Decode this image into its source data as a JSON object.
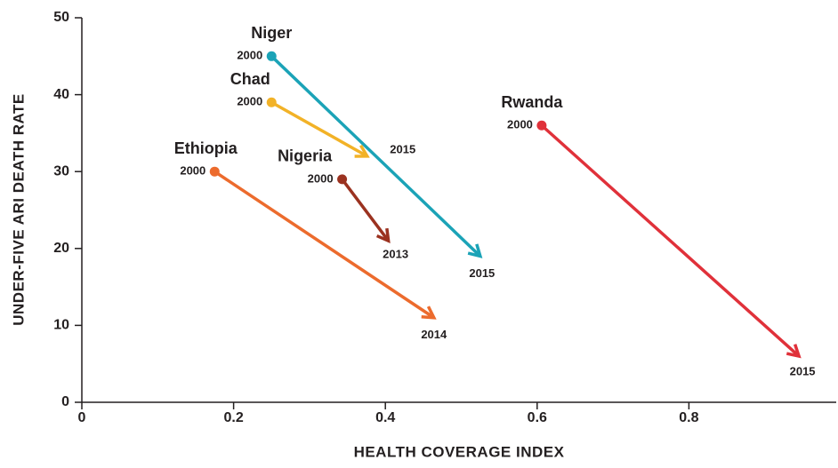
{
  "chart_data": {
    "type": "arrow",
    "x_label": "HEALTH COVERAGE INDEX",
    "y_label": "UNDER-FIVE ARI DEATH RATE",
    "xlim": [
      0,
      1
    ],
    "xticks": [
      0,
      0.2,
      0.4,
      0.6,
      0.8
    ],
    "ylim": [
      0,
      50
    ],
    "yticks": [
      0,
      10,
      20,
      30,
      40,
      50
    ],
    "series": [
      {
        "name": "Niger",
        "color": "#1ba3b7",
        "x": [
          0.25,
          0.525
        ],
        "values": [
          45,
          19
        ],
        "labels": [
          2000,
          2015
        ]
      },
      {
        "name": "Chad",
        "color": "#f2b227",
        "x": [
          0.25,
          0.376
        ],
        "values": [
          39,
          32
        ],
        "labels": [
          2000,
          2015
        ]
      },
      {
        "name": "Ethiopia",
        "color": "#ec6b2d",
        "x": [
          0.175,
          0.464
        ],
        "values": [
          30,
          11
        ],
        "labels": [
          2000,
          2014
        ]
      },
      {
        "name": "Nigeria",
        "color": "#9b3220",
        "x": [
          0.343,
          0.404
        ],
        "values": [
          29,
          21
        ],
        "labels": [
          2000,
          2013
        ]
      },
      {
        "name": "Rwanda",
        "color": "#e0313a",
        "x": [
          0.606,
          0.945
        ],
        "values": [
          36,
          6
        ],
        "labels": [
          2000,
          2015
        ]
      }
    ]
  }
}
